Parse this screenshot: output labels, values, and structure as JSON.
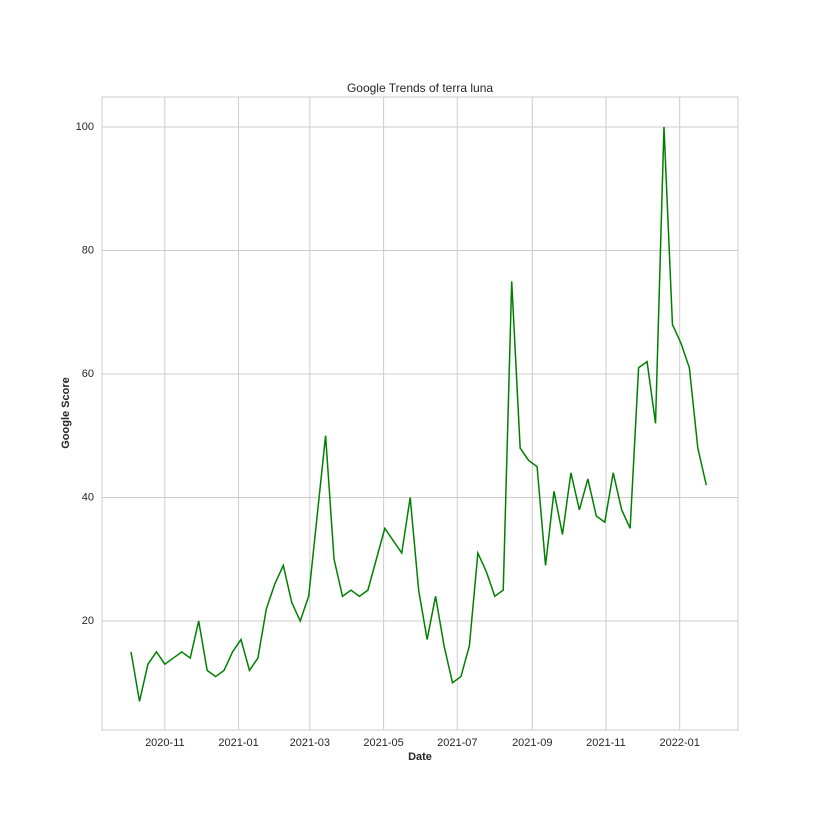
{
  "chart_data": {
    "type": "line",
    "title": "Google Trends of terra luna",
    "x_label": "Date",
    "y_label": "Google Score",
    "values": [
      15,
      7,
      13,
      15,
      13,
      14,
      15,
      14,
      20,
      12,
      11,
      12,
      15,
      17,
      12,
      14,
      22,
      26,
      29,
      23,
      20,
      24,
      37,
      50,
      30,
      24,
      25,
      24,
      25,
      30,
      35,
      33,
      31,
      40,
      25,
      17,
      24,
      16,
      10,
      11,
      16,
      31,
      28,
      24,
      25,
      75,
      48,
      46,
      45,
      29,
      41,
      34,
      44,
      38,
      43,
      37,
      36,
      44,
      38,
      35,
      61,
      62,
      52,
      100,
      68,
      65,
      61,
      48,
      42
    ],
    "color": "#008000",
    "xlim": [
      -3.43,
      71.75
    ],
    "xticks": [
      {
        "value": 4.0,
        "label": "2020-11"
      },
      {
        "value": 12.71,
        "label": "2021-01"
      },
      {
        "value": 21.14,
        "label": "2021-03"
      },
      {
        "value": 29.86,
        "label": "2021-05"
      },
      {
        "value": 38.57,
        "label": "2021-07"
      },
      {
        "value": 47.43,
        "label": "2021-09"
      },
      {
        "value": 56.14,
        "label": "2021-11"
      },
      {
        "value": 64.86,
        "label": "2022-01"
      }
    ],
    "ylim": [
      2.35,
      104.85
    ],
    "yticks": [
      20,
      40,
      60,
      80,
      100
    ],
    "grid": true
  }
}
